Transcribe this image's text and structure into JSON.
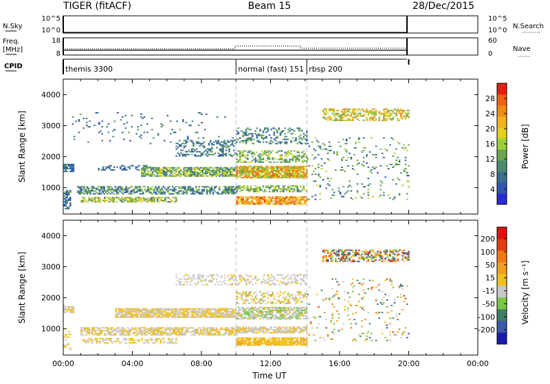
{
  "header": {
    "radar": "TIGER (fitACF)",
    "beam": "Beam 15",
    "date": "28/Dec/2015"
  },
  "colors": {
    "power_scale": [
      "#2b2bd6",
      "#2f55b0",
      "#3b6e8f",
      "#4c8c6e",
      "#6aa84f",
      "#9ccf3a",
      "#e0d020",
      "#f0b020",
      "#f08c10",
      "#f06010",
      "#e02010"
    ],
    "velocity_scale": [
      "#1a1ab0",
      "#3a5aa8",
      "#3f7f6a",
      "#7ac943",
      "#c8c8c8",
      "#f0c020",
      "#f0a020",
      "#f07810",
      "#e04010",
      "#e01010"
    ]
  },
  "top_panels": {
    "nsky_label": "N.Sky",
    "nsky_ticks": [
      "10^5",
      "10^0"
    ],
    "nsearch_ticks": [
      "10^5",
      "10^0"
    ],
    "nsearch_label": "N.Search",
    "freq_label_1": "Freq.",
    "freq_label_2": "[MHz]",
    "freq_ticks": [
      "18",
      "8"
    ],
    "nave_ticks": [
      "60",
      "0"
    ],
    "nave_label": "Nave",
    "cpid_label": "CPID",
    "cpid_segments": [
      {
        "label": "themis 3300",
        "start_hour": 0,
        "end_hour": 10.0
      },
      {
        "label": "normal (fast) 151",
        "start_hour": 10.0,
        "end_hour": 14.1
      },
      {
        "label": "rbsp 200",
        "start_hour": 14.1,
        "end_hour": 20.0
      }
    ]
  },
  "chart_data": [
    {
      "type": "heatmap",
      "title": "",
      "xlabel": "",
      "ylabel": "Slant Range [km]",
      "xlim": [
        0,
        24
      ],
      "ylim": [
        150,
        4500
      ],
      "yticks": [
        "1000",
        "2000",
        "3000",
        "4000"
      ],
      "colorbar_label": "Power [dB]",
      "colorbar_ticks": [
        "4",
        "8",
        "12",
        "16",
        "20",
        "24",
        "28"
      ],
      "colorbar_range": [
        0,
        32
      ],
      "bands": [
        {
          "t0": 0.0,
          "t1": 0.6,
          "r0": 1500,
          "r1": 1750,
          "v0": 4,
          "v1": 10,
          "density": 0.8
        },
        {
          "t0": 2.0,
          "t1": 5.0,
          "r0": 1550,
          "r1": 1700,
          "v0": 4,
          "v1": 10,
          "density": 0.35
        },
        {
          "t0": 4.5,
          "t1": 10.0,
          "r0": 1350,
          "r1": 1650,
          "v0": 6,
          "v1": 20,
          "density": 0.75
        },
        {
          "t0": 10.0,
          "t1": 14.1,
          "r0": 1300,
          "r1": 1700,
          "v0": 12,
          "v1": 28,
          "density": 0.9
        },
        {
          "t0": 10.0,
          "t1": 14.1,
          "r0": 1800,
          "r1": 2200,
          "v0": 8,
          "v1": 20,
          "density": 0.45
        },
        {
          "t0": 6.5,
          "t1": 10.0,
          "r0": 2000,
          "r1": 2500,
          "v0": 4,
          "v1": 12,
          "density": 0.35
        },
        {
          "t0": 10.0,
          "t1": 14.1,
          "r0": 2400,
          "r1": 2900,
          "v0": 4,
          "v1": 14,
          "density": 0.35
        },
        {
          "t0": 0.8,
          "t1": 10.0,
          "r0": 780,
          "r1": 1020,
          "v0": 4,
          "v1": 16,
          "density": 0.6
        },
        {
          "t0": 1.0,
          "t1": 6.5,
          "r0": 520,
          "r1": 700,
          "v0": 8,
          "v1": 22,
          "density": 0.6
        },
        {
          "t0": 10.0,
          "t1": 14.1,
          "r0": 850,
          "r1": 1050,
          "v0": 8,
          "v1": 20,
          "density": 0.6
        },
        {
          "t0": 10.0,
          "t1": 14.1,
          "r0": 450,
          "r1": 720,
          "v0": 18,
          "v1": 30,
          "density": 0.85
        },
        {
          "t0": 0.0,
          "t1": 0.4,
          "r0": 300,
          "r1": 900,
          "v0": 4,
          "v1": 12,
          "density": 0.5
        },
        {
          "t0": 15.0,
          "t1": 20.0,
          "r0": 3150,
          "r1": 3550,
          "v0": 12,
          "v1": 26,
          "density": 0.55
        },
        {
          "t0": 14.1,
          "t1": 20.0,
          "r0": 600,
          "r1": 2600,
          "v0": 4,
          "v1": 18,
          "density": 0.08
        },
        {
          "t0": 0.5,
          "t1": 10.0,
          "r0": 2400,
          "r1": 3400,
          "v0": 4,
          "v1": 12,
          "density": 0.05
        }
      ]
    },
    {
      "type": "heatmap",
      "title": "",
      "xlabel": "Time UT",
      "ylabel": "Slant Range [km]",
      "xlim": [
        0,
        24
      ],
      "ylim": [
        150,
        4500
      ],
      "xticks": [
        "00:00",
        "04:00",
        "08:00",
        "12:00",
        "16:00",
        "20:00",
        "00:00"
      ],
      "yticks": [
        "1000",
        "2000",
        "3000",
        "4000"
      ],
      "colorbar_label": "Velocity [m s⁻¹]",
      "colorbar_ticks": [
        "200",
        "100",
        "50",
        "15",
        "-15",
        "-50",
        "-100",
        "-200"
      ],
      "colorbar_range": [
        -300,
        300
      ],
      "bands": [
        {
          "t0": 0.0,
          "t1": 0.6,
          "r0": 1500,
          "r1": 1750,
          "v0": -60,
          "v1": 40,
          "density": 0.6
        },
        {
          "t0": 3.0,
          "t1": 10.0,
          "r0": 1350,
          "r1": 1650,
          "v0": -15,
          "v1": 15,
          "density": 0.85
        },
        {
          "t0": 10.0,
          "t1": 14.1,
          "r0": 1300,
          "r1": 1700,
          "v0": -90,
          "v1": 10,
          "density": 0.8
        },
        {
          "t0": 1.0,
          "t1": 10.0,
          "r0": 780,
          "r1": 1020,
          "v0": -15,
          "v1": 15,
          "density": 0.7
        },
        {
          "t0": 1.0,
          "t1": 6.5,
          "r0": 520,
          "r1": 700,
          "v0": -40,
          "v1": 60,
          "density": 0.5
        },
        {
          "t0": 10.0,
          "t1": 14.1,
          "r0": 850,
          "r1": 1050,
          "v0": -15,
          "v1": 15,
          "density": 0.7
        },
        {
          "t0": 10.0,
          "t1": 14.1,
          "r0": 450,
          "r1": 720,
          "v0": 15,
          "v1": 70,
          "density": 0.85
        },
        {
          "t0": 6.5,
          "t1": 14.1,
          "r0": 2400,
          "r1": 2750,
          "v0": -60,
          "v1": 15,
          "density": 0.35
        },
        {
          "t0": 10.0,
          "t1": 14.1,
          "r0": 1800,
          "r1": 2200,
          "v0": -80,
          "v1": 80,
          "density": 0.35
        },
        {
          "t0": 15.0,
          "t1": 20.0,
          "r0": 3150,
          "r1": 3550,
          "v0": -250,
          "v1": 250,
          "density": 0.55
        },
        {
          "t0": 14.1,
          "t1": 20.0,
          "r0": 600,
          "r1": 2600,
          "v0": -200,
          "v1": 200,
          "density": 0.07
        },
        {
          "t0": 0.0,
          "t1": 0.4,
          "r0": 300,
          "r1": 900,
          "v0": -15,
          "v1": 60,
          "density": 0.4
        }
      ]
    }
  ]
}
